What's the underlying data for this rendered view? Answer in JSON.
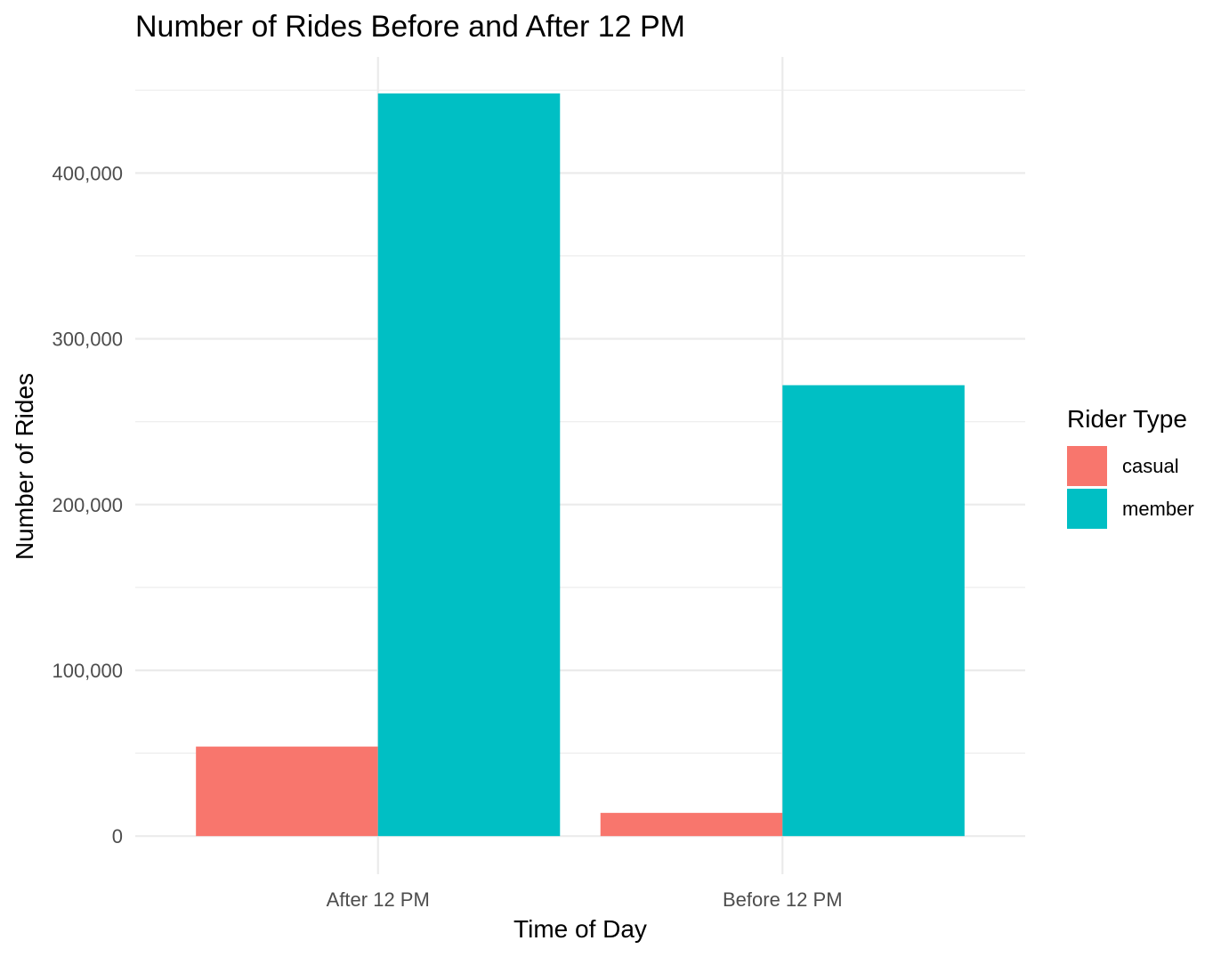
{
  "chart_data": {
    "type": "bar",
    "title": "Number of Rides Before and After 12 PM",
    "xlabel": "Time of Day",
    "ylabel": "Number of Rides",
    "categories": [
      "After 12 PM",
      "Before 12 PM"
    ],
    "series": [
      {
        "name": "casual",
        "color": "#F8766D",
        "values": [
          54000,
          14000
        ]
      },
      {
        "name": "member",
        "color": "#00BFC4",
        "values": [
          448000,
          272000
        ]
      }
    ],
    "ylim": [
      -23000,
      470000
    ],
    "yticks": [
      0,
      100000,
      200000,
      300000,
      400000
    ],
    "ytick_labels": [
      "0",
      "100,000",
      "200,000",
      "300,000",
      "400,000"
    ],
    "grid": true,
    "legend": {
      "title": "Rider Type",
      "position": "right"
    }
  }
}
